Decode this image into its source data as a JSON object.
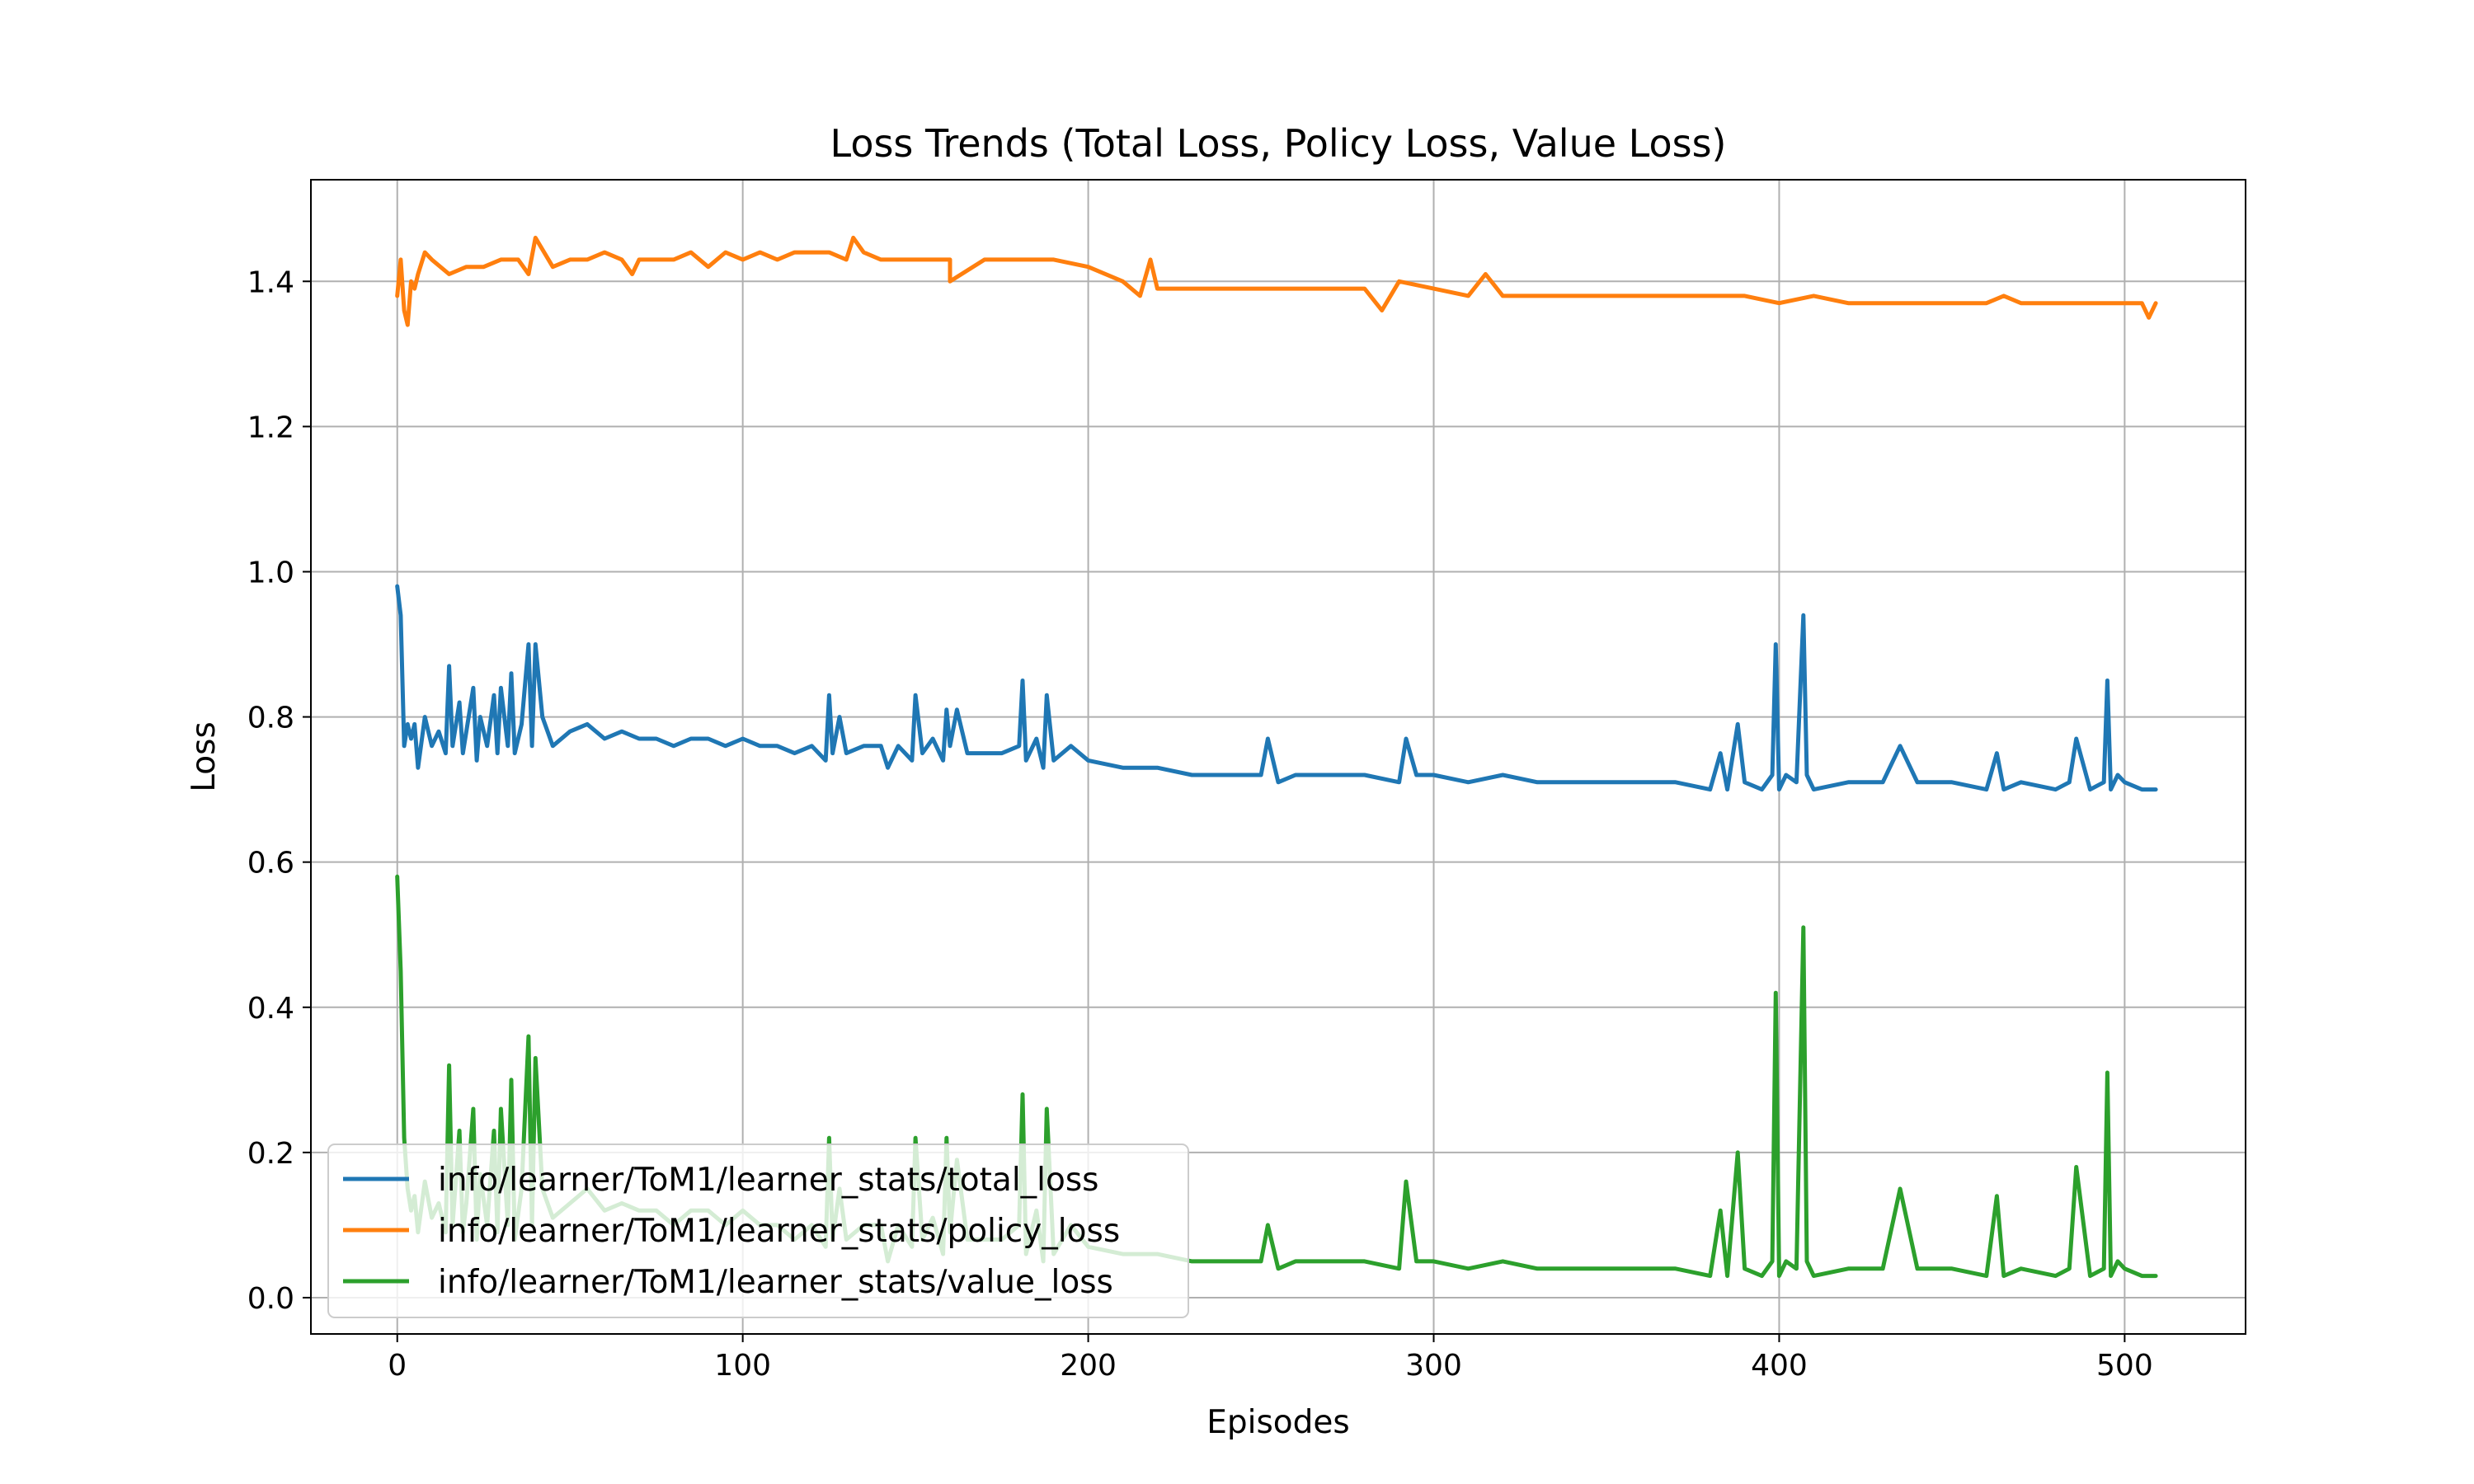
{
  "chart_data": {
    "type": "line",
    "title": "Loss Trends (Total Loss, Policy Loss, Value Loss)",
    "xlabel": "Episodes",
    "ylabel": "Loss",
    "xlim": [
      -25,
      535
    ],
    "ylim": [
      -0.05,
      1.54
    ],
    "xticks": [
      "0",
      "100",
      "200",
      "300",
      "400",
      "500"
    ],
    "yticks": [
      "0.0",
      "0.2",
      "0.4",
      "0.6",
      "0.8",
      "1.0",
      "1.2",
      "1.4"
    ],
    "grid": true,
    "legend_position": "lower-left",
    "series": [
      {
        "name": "info/learner/ToM1/learner_stats/total_loss",
        "color": "#1f77b4",
        "x": [
          0,
          1,
          2,
          3,
          4,
          5,
          6,
          8,
          10,
          12,
          14,
          15,
          16,
          18,
          19,
          20,
          22,
          23,
          24,
          26,
          28,
          29,
          30,
          32,
          33,
          34,
          36,
          38,
          39,
          40,
          42,
          45,
          50,
          55,
          60,
          65,
          70,
          75,
          80,
          85,
          90,
          95,
          100,
          105,
          110,
          115,
          120,
          124,
          125,
          126,
          128,
          130,
          135,
          140,
          142,
          145,
          149,
          150,
          152,
          155,
          158,
          159,
          160,
          162,
          165,
          170,
          175,
          180,
          181,
          182,
          185,
          187,
          188,
          190,
          195,
          200,
          210,
          220,
          230,
          240,
          250,
          252,
          255,
          260,
          270,
          280,
          290,
          292,
          295,
          300,
          310,
          320,
          330,
          340,
          350,
          360,
          370,
          380,
          383,
          385,
          388,
          390,
          395,
          398,
          399,
          400,
          402,
          405,
          407,
          408,
          410,
          420,
          430,
          435,
          440,
          450,
          460,
          463,
          465,
          470,
          480,
          484,
          486,
          490,
          494,
          495,
          496,
          498,
          500,
          505,
          509
        ],
        "y": [
          0.98,
          0.94,
          0.76,
          0.79,
          0.77,
          0.79,
          0.73,
          0.8,
          0.76,
          0.78,
          0.75,
          0.87,
          0.76,
          0.82,
          0.75,
          0.78,
          0.84,
          0.74,
          0.8,
          0.76,
          0.83,
          0.75,
          0.84,
          0.76,
          0.86,
          0.75,
          0.79,
          0.9,
          0.76,
          0.9,
          0.8,
          0.76,
          0.78,
          0.79,
          0.77,
          0.78,
          0.77,
          0.77,
          0.76,
          0.77,
          0.77,
          0.76,
          0.77,
          0.76,
          0.76,
          0.75,
          0.76,
          0.74,
          0.83,
          0.75,
          0.8,
          0.75,
          0.76,
          0.76,
          0.73,
          0.76,
          0.74,
          0.83,
          0.75,
          0.77,
          0.74,
          0.81,
          0.76,
          0.81,
          0.75,
          0.75,
          0.75,
          0.76,
          0.85,
          0.74,
          0.77,
          0.73,
          0.83,
          0.74,
          0.76,
          0.74,
          0.73,
          0.73,
          0.72,
          0.72,
          0.72,
          0.77,
          0.71,
          0.72,
          0.72,
          0.72,
          0.71,
          0.77,
          0.72,
          0.72,
          0.71,
          0.72,
          0.71,
          0.71,
          0.71,
          0.71,
          0.71,
          0.7,
          0.75,
          0.7,
          0.79,
          0.71,
          0.7,
          0.72,
          0.9,
          0.7,
          0.72,
          0.71,
          0.94,
          0.72,
          0.7,
          0.71,
          0.71,
          0.76,
          0.71,
          0.71,
          0.7,
          0.75,
          0.7,
          0.71,
          0.7,
          0.71,
          0.77,
          0.7,
          0.71,
          0.85,
          0.7,
          0.72,
          0.71,
          0.7,
          0.7
        ]
      },
      {
        "name": "info/learner/ToM1/learner_stats/policy_loss",
        "color": "#ff7f0e",
        "x": [
          0,
          1,
          2,
          3,
          4,
          5,
          6,
          8,
          10,
          15,
          20,
          25,
          30,
          35,
          38,
          40,
          45,
          50,
          55,
          60,
          65,
          68,
          70,
          75,
          80,
          85,
          90,
          95,
          100,
          105,
          110,
          115,
          120,
          125,
          130,
          132,
          135,
          140,
          150,
          160,
          160,
          170,
          180,
          190,
          200,
          210,
          215,
          218,
          220,
          230,
          240,
          250,
          260,
          270,
          280,
          285,
          290,
          300,
          310,
          315,
          320,
          330,
          340,
          350,
          360,
          370,
          380,
          390,
          400,
          410,
          420,
          430,
          440,
          450,
          460,
          465,
          470,
          480,
          490,
          500,
          505,
          507,
          509
        ],
        "y": [
          1.38,
          1.43,
          1.36,
          1.34,
          1.4,
          1.39,
          1.41,
          1.44,
          1.43,
          1.41,
          1.42,
          1.42,
          1.43,
          1.43,
          1.41,
          1.46,
          1.42,
          1.43,
          1.43,
          1.44,
          1.43,
          1.41,
          1.43,
          1.43,
          1.43,
          1.44,
          1.42,
          1.44,
          1.43,
          1.44,
          1.43,
          1.44,
          1.44,
          1.44,
          1.43,
          1.46,
          1.44,
          1.43,
          1.43,
          1.43,
          1.4,
          1.43,
          1.43,
          1.43,
          1.42,
          1.4,
          1.38,
          1.43,
          1.39,
          1.39,
          1.39,
          1.39,
          1.39,
          1.39,
          1.39,
          1.36,
          1.4,
          1.39,
          1.38,
          1.41,
          1.38,
          1.38,
          1.38,
          1.38,
          1.38,
          1.38,
          1.38,
          1.38,
          1.37,
          1.38,
          1.37,
          1.37,
          1.37,
          1.37,
          1.37,
          1.38,
          1.37,
          1.37,
          1.37,
          1.37,
          1.37,
          1.35,
          1.37
        ]
      },
      {
        "name": "info/learner/ToM1/learner_stats/value_loss",
        "color": "#2ca02c",
        "x": [
          0,
          1,
          2,
          3,
          4,
          5,
          6,
          8,
          10,
          12,
          14,
          15,
          16,
          18,
          19,
          20,
          22,
          23,
          24,
          26,
          28,
          29,
          30,
          32,
          33,
          34,
          36,
          38,
          39,
          40,
          42,
          45,
          50,
          55,
          60,
          65,
          70,
          75,
          80,
          85,
          90,
          95,
          100,
          105,
          110,
          115,
          120,
          124,
          125,
          126,
          128,
          130,
          135,
          140,
          142,
          145,
          149,
          150,
          152,
          155,
          158,
          159,
          160,
          162,
          165,
          170,
          175,
          180,
          181,
          182,
          185,
          187,
          188,
          190,
          195,
          200,
          210,
          220,
          230,
          240,
          250,
          252,
          255,
          260,
          270,
          280,
          290,
          292,
          295,
          300,
          310,
          320,
          330,
          340,
          350,
          360,
          370,
          380,
          383,
          385,
          388,
          390,
          395,
          398,
          399,
          400,
          402,
          405,
          407,
          408,
          410,
          420,
          430,
          435,
          440,
          450,
          460,
          463,
          465,
          470,
          480,
          484,
          486,
          490,
          494,
          495,
          496,
          498,
          500,
          505,
          509
        ],
        "y": [
          0.58,
          0.45,
          0.22,
          0.15,
          0.12,
          0.14,
          0.09,
          0.16,
          0.11,
          0.13,
          0.09,
          0.32,
          0.1,
          0.23,
          0.09,
          0.13,
          0.26,
          0.08,
          0.17,
          0.1,
          0.23,
          0.09,
          0.26,
          0.1,
          0.3,
          0.08,
          0.15,
          0.36,
          0.1,
          0.33,
          0.15,
          0.11,
          0.13,
          0.15,
          0.12,
          0.13,
          0.12,
          0.12,
          0.1,
          0.12,
          0.12,
          0.1,
          0.12,
          0.1,
          0.1,
          0.08,
          0.1,
          0.07,
          0.22,
          0.08,
          0.15,
          0.08,
          0.1,
          0.1,
          0.05,
          0.1,
          0.07,
          0.22,
          0.08,
          0.11,
          0.06,
          0.22,
          0.09,
          0.19,
          0.08,
          0.08,
          0.08,
          0.1,
          0.28,
          0.06,
          0.12,
          0.05,
          0.26,
          0.06,
          0.1,
          0.07,
          0.06,
          0.06,
          0.05,
          0.05,
          0.05,
          0.1,
          0.04,
          0.05,
          0.05,
          0.05,
          0.04,
          0.16,
          0.05,
          0.05,
          0.04,
          0.05,
          0.04,
          0.04,
          0.04,
          0.04,
          0.04,
          0.03,
          0.12,
          0.03,
          0.2,
          0.04,
          0.03,
          0.05,
          0.42,
          0.03,
          0.05,
          0.04,
          0.51,
          0.05,
          0.03,
          0.04,
          0.04,
          0.15,
          0.04,
          0.04,
          0.03,
          0.14,
          0.03,
          0.04,
          0.03,
          0.04,
          0.18,
          0.03,
          0.04,
          0.31,
          0.03,
          0.05,
          0.04,
          0.03,
          0.03
        ]
      }
    ]
  }
}
